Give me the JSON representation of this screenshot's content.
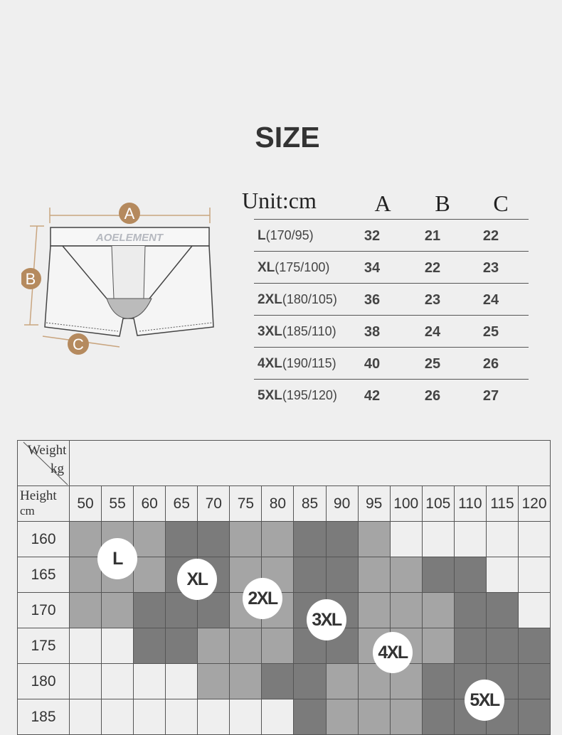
{
  "title": "SIZE",
  "diagram": {
    "brand": "AOELEMENT",
    "labels": [
      "A",
      "B",
      "C"
    ],
    "accent": "#b58a5e"
  },
  "size_table": {
    "unit": "Unit:cm",
    "columns": [
      "A",
      "B",
      "C"
    ],
    "rows": [
      {
        "size": "L",
        "spec": "(170/95)",
        "values": [
          "32",
          "21",
          "22"
        ]
      },
      {
        "size": "XL",
        "spec": "(175/100)",
        "values": [
          "34",
          "22",
          "23"
        ]
      },
      {
        "size": "2XL",
        "spec": "(180/105)",
        "values": [
          "36",
          "23",
          "24"
        ]
      },
      {
        "size": "3XL",
        "spec": "(185/110)",
        "values": [
          "38",
          "24",
          "25"
        ]
      },
      {
        "size": "4XL",
        "spec": "(190/115)",
        "values": [
          "40",
          "25",
          "26"
        ]
      },
      {
        "size": "5XL",
        "spec": "(195/120)",
        "values": [
          "42",
          "26",
          "27"
        ]
      }
    ]
  },
  "fit_chart": {
    "weight_label": "Weight",
    "weight_unit": "kg",
    "height_label": "Height",
    "height_unit": "cm",
    "weights": [
      "50",
      "55",
      "60",
      "65",
      "70",
      "75",
      "80",
      "85",
      "90",
      "95",
      "100",
      "105",
      "110",
      "115",
      "120"
    ],
    "heights": [
      "160",
      "165",
      "170",
      "175",
      "180",
      "185"
    ],
    "shade_colors": {
      "W": "#efefef",
      "L": "#a5a5a5",
      "D": "#7b7b7b"
    },
    "shading": [
      "LLLDDLLDDLWWWWW",
      "LLLDDLLDDLLDDWW",
      "LLDDDLLDDLLLDDW",
      "WWDDLLLDDLLLDDD",
      "WWWWLLDDLLLDDDD",
      "WWWWWWWDLLLDDDD"
    ],
    "badges": [
      "L",
      "XL",
      "2XL",
      "3XL",
      "4XL",
      "5XL"
    ]
  }
}
